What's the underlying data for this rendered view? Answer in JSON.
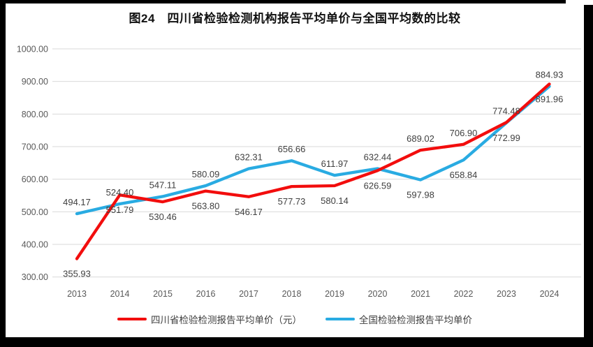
{
  "title": "图24　四川省检验检测机构报告平均单价与全国平均数的比较",
  "chart_data": {
    "type": "line",
    "x": [
      "2013",
      "2014",
      "2015",
      "2016",
      "2017",
      "2018",
      "2019",
      "2020",
      "2021",
      "2022",
      "2023",
      "2024"
    ],
    "series": [
      {
        "id": "sichuan-average-price",
        "name": "四川省检验检测报告平均单价（元）",
        "color": "#f20d0d",
        "values": [
          355.93,
          551.79,
          530.46,
          563.8,
          546.17,
          577.73,
          580.14,
          626.59,
          689.02,
          706.9,
          774.48,
          891.96
        ],
        "label_side": [
          "below",
          "below",
          "below",
          "below",
          "below",
          "below",
          "below",
          "below",
          "above",
          "above",
          "above",
          "below"
        ]
      },
      {
        "id": "national-average-price",
        "name": "全国检验检测报告平均单价",
        "color": "#29abe2",
        "values": [
          494.17,
          524.4,
          547.11,
          580.09,
          632.31,
          656.66,
          611.97,
          632.44,
          597.98,
          658.84,
          772.99,
          884.93
        ],
        "label_side": [
          "above",
          "above",
          "above",
          "above",
          "above",
          "above",
          "above",
          "above",
          "below",
          "below",
          "below",
          "above"
        ]
      }
    ],
    "ylim": [
      300,
      1000
    ],
    "ytick_step": 100,
    "ytick_labels": [
      "300.00",
      "400.00",
      "500.00",
      "600.00",
      "700.00",
      "800.00",
      "900.00",
      "1000.00"
    ],
    "value_format_decimals": 2,
    "grid": true,
    "grid_color": "#d9d9d9",
    "legend_position": "bottom"
  }
}
